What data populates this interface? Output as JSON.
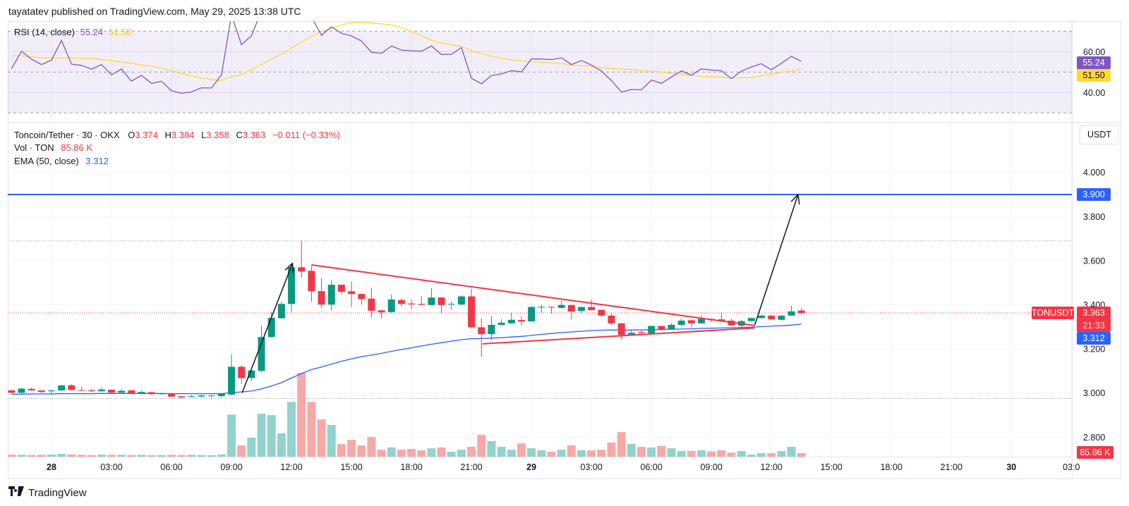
{
  "header": {
    "published": "tayatatev published on TradingView.com, May 29, 2025 13:38 UTC"
  },
  "footer": {
    "logo_text": "TradingView",
    "logo_mark": "TV"
  },
  "rsi_legend": {
    "title": "RSI (14, close)",
    "rsi": "55.24",
    "ma": "51.50"
  },
  "legend": {
    "symbol": "Toncoin/Tether · 30 · OKX",
    "o_label": "O",
    "o": "3.374",
    "h_label": "H",
    "h": "3.384",
    "l_label": "L",
    "l": "3.358",
    "c_label": "C",
    "c": "3.363",
    "change": "−0.011 (−0.33%)",
    "vol_label": "Vol · TON",
    "vol": "85.86 K",
    "ema_label": "EMA (50, close)",
    "ema": "3.312"
  },
  "price_axis": {
    "currency": "USDT"
  },
  "tags": {
    "symbol": "TONUSDT",
    "last": "3.363",
    "countdown": "21:33",
    "ema": "3.312",
    "target": "3.900",
    "volume": "85.86 K",
    "rsi": "55.24",
    "rsi_ma": "51.50"
  },
  "colors": {
    "up": "#089981",
    "down": "#f23645",
    "vol_up": "#92d2cc",
    "vol_down": "#f7a9a7",
    "ema": "#2962ff",
    "rsi": "#7e57c2",
    "rsi_ma": "#fdd835",
    "target_line": "#2962ff",
    "trendline": "#f23645",
    "arrow": "#131722",
    "grid": "#f0f3fa"
  },
  "chart_data": {
    "type": "candlestick",
    "symbol": "Toncoin/Tether",
    "interval_minutes": 30,
    "x_range": [
      "2025-05-27 22:00",
      "2025-05-29 13:30"
    ],
    "time_ticks": [
      {
        "label": "28",
        "time": "2025-05-28 00:00",
        "bold": true
      },
      {
        "label": "03:00",
        "time": "2025-05-28 03:00"
      },
      {
        "label": "06:00",
        "time": "2025-05-28 06:00"
      },
      {
        "label": "09:00",
        "time": "2025-05-28 09:00"
      },
      {
        "label": "12:00",
        "time": "2025-05-28 12:00"
      },
      {
        "label": "15:00",
        "time": "2025-05-28 15:00"
      },
      {
        "label": "18:00",
        "time": "2025-05-28 18:00"
      },
      {
        "label": "21:00",
        "time": "2025-05-28 21:00"
      },
      {
        "label": "29",
        "time": "2025-05-29 00:00",
        "bold": true
      },
      {
        "label": "03:00",
        "time": "2025-05-29 03:00"
      },
      {
        "label": "06:00",
        "time": "2025-05-29 06:00"
      },
      {
        "label": "09:00",
        "time": "2025-05-29 09:00"
      },
      {
        "label": "12:00",
        "time": "2025-05-29 12:00"
      },
      {
        "label": "15:00",
        "time": "2025-05-29 15:00"
      },
      {
        "label": "18:00",
        "time": "2025-05-29 18:00"
      },
      {
        "label": "21:00",
        "time": "2025-05-29 21:00"
      },
      {
        "label": "30",
        "time": "2025-05-30 00:00",
        "bold": true
      },
      {
        "label": "03:0",
        "time": "2025-05-30 03:00"
      }
    ],
    "price_ticks": [
      "4.000",
      "3.800",
      "3.600",
      "3.400",
      "3.200",
      "3.000",
      "2.800"
    ],
    "rsi_ticks": [
      "60.00",
      "40.00"
    ],
    "rsi_levels": [
      70,
      50,
      30
    ],
    "grid": true,
    "ohlc": [
      [
        3.012,
        3.015,
        2.998,
        3.001
      ],
      [
        3.001,
        3.022,
        2.999,
        3.02
      ],
      [
        3.019,
        3.024,
        3.01,
        3.012
      ],
      [
        3.012,
        3.013,
        3.0,
        3.005
      ],
      [
        3.008,
        3.014,
        2.998,
        3.012
      ],
      [
        3.012,
        3.037,
        3.01,
        3.035
      ],
      [
        3.035,
        3.04,
        3.012,
        3.014
      ],
      [
        3.013,
        3.027,
        3.01,
        3.011
      ],
      [
        3.012,
        3.02,
        3.006,
        3.008
      ],
      [
        3.008,
        3.025,
        3.006,
        3.016
      ],
      [
        3.015,
        3.017,
        3.0,
        3.002
      ],
      [
        3.002,
        3.018,
        3.0,
        3.01
      ],
      [
        3.012,
        3.014,
        2.996,
        2.998
      ],
      [
        2.998,
        3.01,
        2.996,
        3.005
      ],
      [
        3.004,
        3.006,
        2.993,
        2.995
      ],
      [
        2.996,
        3.0,
        2.992,
        2.998
      ],
      [
        2.999,
        3.001,
        2.982,
        2.984
      ],
      [
        2.985,
        2.987,
        2.975,
        2.98
      ],
      [
        2.983,
        2.991,
        2.981,
        2.986
      ],
      [
        2.984,
        2.993,
        2.982,
        2.989
      ],
      [
        2.986,
        2.991,
        2.978,
        2.989
      ],
      [
        2.986,
        3.0,
        2.98,
        2.998
      ],
      [
        2.993,
        3.176,
        2.99,
        3.119
      ],
      [
        3.119,
        3.126,
        3.041,
        3.068
      ],
      [
        3.068,
        3.106,
        3.055,
        3.102
      ],
      [
        3.1,
        3.305,
        3.094,
        3.254
      ],
      [
        3.254,
        3.369,
        3.252,
        3.341
      ],
      [
        3.339,
        3.415,
        3.337,
        3.404
      ],
      [
        3.404,
        3.576,
        3.366,
        3.57
      ],
      [
        3.57,
        3.69,
        3.523,
        3.551
      ],
      [
        3.554,
        3.576,
        3.414,
        3.462
      ],
      [
        3.462,
        3.521,
        3.385,
        3.401
      ],
      [
        3.401,
        3.511,
        3.375,
        3.491
      ],
      [
        3.491,
        3.493,
        3.447,
        3.459
      ],
      [
        3.461,
        3.505,
        3.39,
        3.449
      ],
      [
        3.449,
        3.451,
        3.401,
        3.426
      ],
      [
        3.428,
        3.477,
        3.343,
        3.373
      ],
      [
        3.375,
        3.377,
        3.338,
        3.366
      ],
      [
        3.367,
        3.447,
        3.365,
        3.424
      ],
      [
        3.421,
        3.43,
        3.392,
        3.404
      ],
      [
        3.406,
        3.424,
        3.381,
        3.402
      ],
      [
        3.404,
        3.44,
        3.398,
        3.4
      ],
      [
        3.399,
        3.475,
        3.397,
        3.433
      ],
      [
        3.433,
        3.435,
        3.362,
        3.399
      ],
      [
        3.402,
        3.415,
        3.378,
        3.404
      ],
      [
        3.401,
        3.443,
        3.399,
        3.438
      ],
      [
        3.438,
        3.472,
        3.292,
        3.298
      ],
      [
        3.298,
        3.338,
        3.165,
        3.267
      ],
      [
        3.267,
        3.348,
        3.239,
        3.309
      ],
      [
        3.309,
        3.334,
        3.307,
        3.319
      ],
      [
        3.316,
        3.364,
        3.314,
        3.332
      ],
      [
        3.331,
        3.348,
        3.306,
        3.324
      ],
      [
        3.325,
        3.396,
        3.323,
        3.39
      ],
      [
        3.388,
        3.4,
        3.364,
        3.391
      ],
      [
        3.391,
        3.393,
        3.361,
        3.388
      ],
      [
        3.386,
        3.42,
        3.384,
        3.399
      ],
      [
        3.399,
        3.401,
        3.332,
        3.369
      ],
      [
        3.372,
        3.392,
        3.362,
        3.39
      ],
      [
        3.39,
        3.424,
        3.374,
        3.376
      ],
      [
        3.377,
        3.379,
        3.345,
        3.351
      ],
      [
        3.351,
        3.362,
        3.309,
        3.316
      ],
      [
        3.316,
        3.318,
        3.242,
        3.263
      ],
      [
        3.263,
        3.288,
        3.261,
        3.273
      ],
      [
        3.276,
        3.285,
        3.267,
        3.272
      ],
      [
        3.271,
        3.306,
        3.269,
        3.304
      ],
      [
        3.304,
        3.306,
        3.283,
        3.289
      ],
      [
        3.29,
        3.316,
        3.288,
        3.309
      ],
      [
        3.309,
        3.337,
        3.304,
        3.328
      ],
      [
        3.33,
        3.332,
        3.298,
        3.316
      ],
      [
        3.316,
        3.353,
        3.314,
        3.336
      ],
      [
        3.336,
        3.338,
        3.321,
        3.33
      ],
      [
        3.334,
        3.366,
        3.326,
        3.328
      ],
      [
        3.328,
        3.336,
        3.305,
        3.307
      ],
      [
        3.305,
        3.332,
        3.292,
        3.326
      ],
      [
        3.326,
        3.342,
        3.324,
        3.34
      ],
      [
        3.34,
        3.355,
        3.338,
        3.351
      ],
      [
        3.351,
        3.353,
        3.332,
        3.334
      ],
      [
        3.332,
        3.353,
        3.328,
        3.351
      ],
      [
        3.351,
        3.396,
        3.349,
        3.37
      ],
      [
        3.374,
        3.384,
        3.358,
        3.363
      ]
    ],
    "volume_k": [
      50,
      45,
      40,
      45,
      50,
      70,
      55,
      45,
      40,
      50,
      45,
      45,
      40,
      45,
      35,
      40,
      45,
      40,
      45,
      40,
      35,
      55,
      1030,
      275,
      465,
      1050,
      1015,
      570,
      1340,
      2050,
      1340,
      910,
      775,
      310,
      415,
      275,
      480,
      170,
      225,
      170,
      190,
      155,
      205,
      225,
      120,
      170,
      240,
      535,
      380,
      240,
      170,
      325,
      205,
      155,
      120,
      170,
      275,
      155,
      155,
      170,
      345,
      600,
      310,
      240,
      225,
      260,
      205,
      140,
      140,
      155,
      130,
      155,
      100,
      138,
      52,
      86,
      86,
      138,
      240,
      85.86
    ],
    "ema50": [
      2.995,
      2.995,
      2.996,
      2.996,
      2.996,
      2.997,
      2.997,
      2.997,
      2.997,
      2.998,
      2.998,
      2.998,
      2.998,
      2.998,
      2.998,
      2.998,
      2.997,
      2.997,
      2.997,
      2.997,
      2.997,
      2.997,
      3.002,
      3.005,
      3.009,
      3.019,
      3.032,
      3.047,
      3.068,
      3.088,
      3.106,
      3.118,
      3.131,
      3.144,
      3.155,
      3.165,
      3.172,
      3.18,
      3.189,
      3.197,
      3.205,
      3.213,
      3.221,
      3.228,
      3.235,
      3.242,
      3.246,
      3.247,
      3.249,
      3.251,
      3.254,
      3.257,
      3.261,
      3.266,
      3.27,
      3.274,
      3.277,
      3.28,
      3.283,
      3.285,
      3.286,
      3.285,
      3.286,
      3.286,
      3.287,
      3.288,
      3.289,
      3.29,
      3.291,
      3.293,
      3.294,
      3.295,
      3.296,
      3.297,
      3.299,
      3.301,
      3.303,
      3.305,
      3.308,
      3.312
    ],
    "rsi": [
      51.7,
      60.2,
      56.3,
      53.7,
      55.9,
      65.5,
      53.9,
      53.3,
      51.4,
      53.7,
      48.7,
      51.5,
      45.6,
      48.4,
      44.5,
      45.5,
      40.9,
      39.7,
      40.3,
      42.3,
      42.2,
      48.7,
      78,
      63.4,
      67.8,
      80,
      84,
      86,
      90,
      84,
      77,
      68.0,
      72.1,
      69.0,
      67.7,
      65.2,
      59.7,
      59.2,
      62.8,
      60.8,
      60.4,
      60.2,
      62.8,
      58.6,
      58.7,
      62.0,
      47.0,
      44.3,
      48.3,
      49.1,
      50.7,
      50.1,
      56.4,
      56.4,
      56.1,
      57.0,
      53.7,
      55.7,
      53.4,
      50.5,
      45.9,
      40.2,
      41.5,
      41.3,
      46.1,
      44.5,
      47.6,
      50.6,
      48.5,
      51.6,
      51.0,
      50.7,
      46.8,
      50.5,
      52.5,
      54.1,
      51.1,
      54.3,
      57.7,
      55.24
    ],
    "rsi_ma": [
      58,
      58,
      57.5,
      57,
      56.9,
      56.9,
      56.9,
      56.8,
      56.8,
      56.2,
      55.6,
      55.0,
      54.3,
      53.5,
      52.9,
      51.9,
      50.6,
      49.4,
      48.2,
      47.1,
      46.4,
      45.9,
      47.7,
      48.7,
      51.2,
      53.7,
      56.3,
      58.8,
      61.7,
      64.6,
      67.4,
      69.9,
      71.6,
      73.0,
      74.3,
      74.5,
      74.0,
      73.6,
      73.1,
      71.7,
      69.8,
      67.8,
      65.6,
      64.2,
      63.3,
      62.6,
      60.5,
      59.0,
      57.8,
      56.7,
      56.0,
      55.5,
      55.1,
      54.8,
      54.5,
      54.2,
      53.5,
      53.1,
      52.8,
      52.1,
      51.8,
      51.6,
      51.2,
      50.8,
      50.4,
      50.0,
      49.4,
      48.9,
      48.4,
      47.9,
      47.7,
      47.6,
      47.1,
      47.2,
      47.4,
      48.2,
      49.0,
      49.8,
      50.6,
      51.5
    ],
    "last_price": 3.363,
    "session_high": 3.69,
    "session_low": 2.975,
    "horizontal_line": 3.9,
    "drawings": [
      {
        "name": "upper-trendline",
        "kind": "line",
        "points": [
          {
            "time": "2025-05-28 13:00",
            "price": 3.581
          },
          {
            "time": "2025-05-29 11:10",
            "price": 3.306
          }
        ]
      },
      {
        "name": "lower-trendline",
        "kind": "line",
        "points": [
          {
            "time": "2025-05-28 21:33",
            "price": 3.223
          },
          {
            "time": "2025-05-29 11:10",
            "price": 3.295
          }
        ]
      },
      {
        "name": "rally-arrow",
        "kind": "arrow",
        "points": [
          {
            "time": "2025-05-28 09:32",
            "price": 3.001
          },
          {
            "time": "2025-05-28 12:03",
            "price": 3.588
          }
        ]
      },
      {
        "name": "breakout-target-arrow",
        "kind": "arrow",
        "points": [
          {
            "time": "2025-05-29 11:10",
            "price": 3.308
          },
          {
            "time": "2025-05-29 13:20",
            "price": 3.9
          }
        ]
      }
    ]
  }
}
